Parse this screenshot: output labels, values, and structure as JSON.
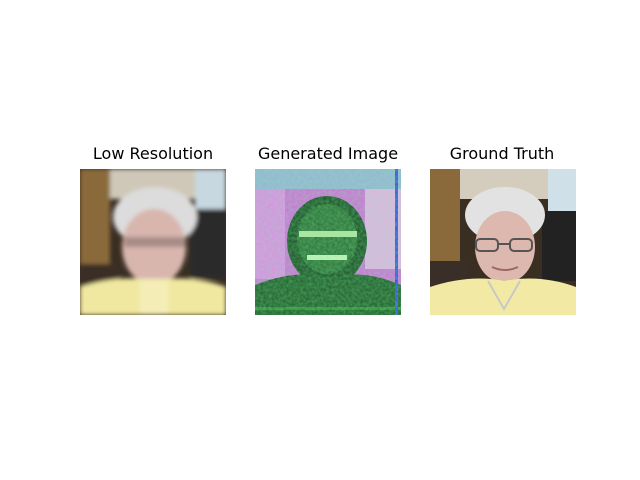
{
  "figure": {
    "panels": [
      {
        "title": "Low Resolution"
      },
      {
        "title": "Generated Image"
      },
      {
        "title": "Ground Truth"
      }
    ]
  },
  "colors": {
    "background": "#ffffff",
    "face": "#d8b6ae",
    "hair": "#dcdcdc",
    "shirt": "#f0e8a0",
    "dark": "#2a2a2a",
    "generated_green": "#1f6b2a",
    "generated_magenta": "#e070e0"
  }
}
